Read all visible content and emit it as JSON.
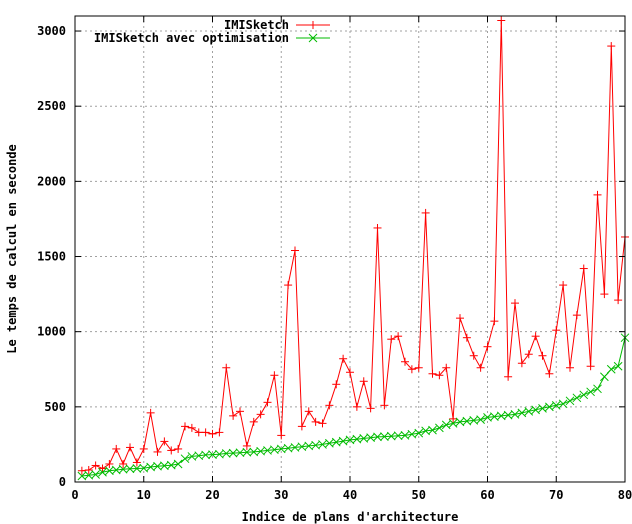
{
  "chart_data": {
    "type": "line",
    "xlabel": "Indice de plans d'architecture",
    "ylabel": "Le temps de calcul en seconde",
    "xlim": [
      0,
      80
    ],
    "ylim": [
      0,
      3100
    ],
    "xticks": [
      0,
      10,
      20,
      30,
      40,
      50,
      60,
      70,
      80
    ],
    "yticks": [
      0,
      500,
      1000,
      1500,
      2000,
      2500,
      3000
    ],
    "grid": true,
    "legend_position": "top-right",
    "series": [
      {
        "name": "IMISketch",
        "color": "#ff0000",
        "marker": "plus",
        "x": [
          1,
          2,
          3,
          4,
          5,
          6,
          7,
          8,
          9,
          10,
          11,
          12,
          13,
          14,
          15,
          16,
          17,
          18,
          19,
          20,
          21,
          22,
          23,
          24,
          25,
          26,
          27,
          28,
          29,
          30,
          31,
          32,
          33,
          34,
          35,
          36,
          37,
          38,
          39,
          40,
          41,
          42,
          43,
          44,
          45,
          46,
          47,
          48,
          49,
          50,
          51,
          52,
          53,
          54,
          55,
          56,
          57,
          58,
          59,
          60,
          61,
          62,
          63,
          64,
          65,
          66,
          67,
          68,
          69,
          70,
          71,
          72,
          73,
          74,
          75,
          76,
          77,
          78,
          79,
          80
        ],
        "y": [
          75,
          80,
          110,
          90,
          120,
          220,
          120,
          230,
          130,
          220,
          460,
          200,
          270,
          210,
          220,
          370,
          360,
          330,
          330,
          320,
          330,
          760,
          440,
          470,
          240,
          400,
          450,
          530,
          710,
          310,
          1310,
          1540,
          370,
          470,
          400,
          390,
          510,
          650,
          820,
          730,
          500,
          670,
          490,
          1690,
          510,
          950,
          970,
          800,
          750,
          760,
          1790,
          720,
          710,
          760,
          420,
          1090,
          960,
          840,
          760,
          900,
          1070,
          3070,
          700,
          1190,
          790,
          850,
          970,
          840,
          720,
          1010,
          1310,
          760,
          1110,
          1420,
          770,
          1910,
          1250,
          2900,
          1210,
          1630
        ]
      },
      {
        "name": "IMISketch avec optimisation",
        "color": "#00bb00",
        "marker": "x",
        "x": [
          1,
          2,
          3,
          4,
          5,
          6,
          7,
          8,
          9,
          10,
          11,
          12,
          13,
          14,
          15,
          16,
          17,
          18,
          19,
          20,
          21,
          22,
          23,
          24,
          25,
          26,
          27,
          28,
          29,
          30,
          31,
          32,
          33,
          34,
          35,
          36,
          37,
          38,
          39,
          40,
          41,
          42,
          43,
          44,
          45,
          46,
          47,
          48,
          49,
          50,
          51,
          52,
          53,
          54,
          55,
          56,
          57,
          58,
          59,
          60,
          61,
          62,
          63,
          64,
          65,
          66,
          67,
          68,
          69,
          70,
          71,
          72,
          73,
          74,
          75,
          76,
          77,
          78,
          79,
          80
        ],
        "y": [
          40,
          45,
          50,
          65,
          75,
          80,
          85,
          88,
          90,
          92,
          100,
          105,
          108,
          112,
          120,
          155,
          170,
          175,
          180,
          182,
          185,
          190,
          192,
          195,
          198,
          200,
          205,
          210,
          215,
          220,
          225,
          230,
          235,
          240,
          245,
          250,
          258,
          265,
          272,
          280,
          285,
          290,
          295,
          300,
          302,
          305,
          308,
          310,
          318,
          325,
          340,
          345,
          360,
          380,
          390,
          400,
          405,
          410,
          415,
          430,
          435,
          440,
          445,
          450,
          460,
          470,
          480,
          490,
          500,
          510,
          520,
          540,
          560,
          580,
          600,
          620,
          700,
          750,
          770,
          960
        ]
      }
    ]
  }
}
